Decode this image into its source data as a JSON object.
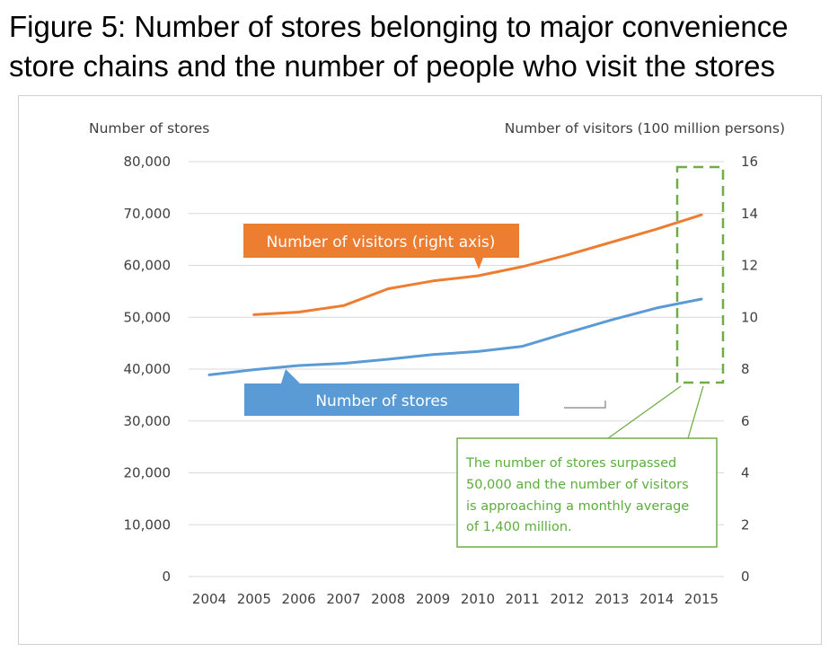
{
  "figure": {
    "title_line1": "Figure 5: Number of stores belonging to major convenience",
    "title_line2": "store chains and the number of people who visit the stores"
  },
  "chart_data": {
    "type": "line",
    "x": [
      2004,
      2005,
      2006,
      2007,
      2008,
      2009,
      2010,
      2011,
      2012,
      2013,
      2014,
      2015
    ],
    "x_tick_labels": [
      "2004",
      "2005",
      "2006",
      "2007",
      "2008",
      "2009",
      "2010",
      "2011",
      "2012",
      "2013",
      "2014",
      "2015"
    ],
    "left_axis": {
      "label": "Number of stores",
      "ylim": [
        0,
        80000
      ],
      "tick_labels": [
        "0",
        "10,000",
        "20,000",
        "30,000",
        "40,000",
        "50,000",
        "60,000",
        "70,000",
        "80,000"
      ]
    },
    "right_axis": {
      "label": "Number of visitors (100 million persons)",
      "ylim": [
        0,
        16
      ],
      "tick_labels": [
        "0",
        "2",
        "4",
        "6",
        "8",
        "10",
        "12",
        "14",
        "16"
      ]
    },
    "series": [
      {
        "name": "Number of stores",
        "axis": "left",
        "color": "#5b9bd5",
        "x": [
          2004,
          2005,
          2006,
          2007,
          2008,
          2009,
          2010,
          2011,
          2012,
          2013,
          2014,
          2015
        ],
        "values": [
          38900,
          39900,
          40700,
          41100,
          41900,
          42800,
          43400,
          44400,
          47000,
          49500,
          51800,
          53500
        ]
      },
      {
        "name": "Number of visitors (right axis)",
        "axis": "right",
        "color": "#ed7d31",
        "x": [
          2005,
          2006,
          2007,
          2008,
          2009,
          2010,
          2011,
          2012,
          2013,
          2014,
          2015
        ],
        "values": [
          10.1,
          10.2,
          10.45,
          11.1,
          11.4,
          11.6,
          11.95,
          12.4,
          12.9,
          13.4,
          13.95
        ]
      }
    ],
    "grid": true,
    "callouts": {
      "visitors": "Number of visitors (right axis)",
      "stores": "Number of stores"
    },
    "annotation": {
      "lines": [
        "The number of stores surpassed",
        "50,000 and the number of visitors",
        "is approaching a monthly average",
        "of 1,400 million."
      ],
      "color": "#70ad47"
    }
  }
}
